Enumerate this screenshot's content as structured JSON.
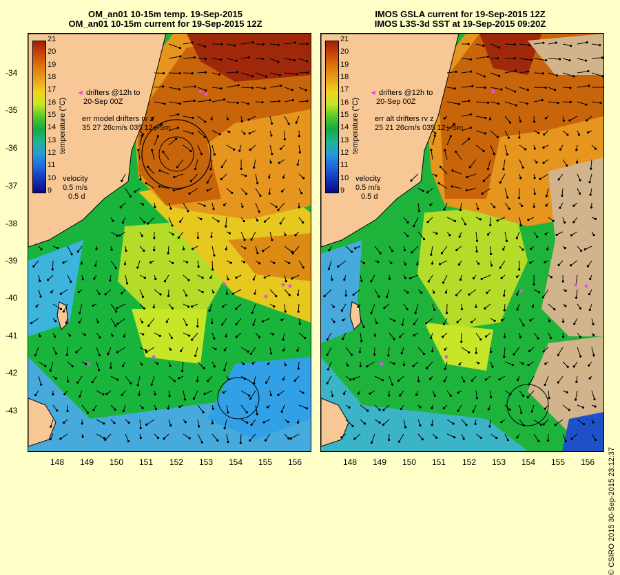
{
  "left": {
    "title_line1": "OM_an01 10-15m temp. 19-Sep-2015",
    "title_line2": "OM_an01 10-15m current for 19-Sep-2015 12Z",
    "drifters_label1": "drifters @12h to",
    "drifters_label2": "20-Sep 00Z",
    "err_line1": "err model drifters rv z",
    "err_line2": "35 27 26cm/s 035 12+-5m"
  },
  "right": {
    "title_line1": "IMOS GSLA current for 19-Sep-2015 12Z",
    "title_line2": "IMOS L3S-3d SST at 19-Sep-2015 09:20Z",
    "drifters_label1": "drifters @12h to",
    "drifters_label2": "20-Sep 00Z",
    "err_line1": "err alt drifters rv z",
    "err_line2": "25 21 26cm/s 035 12+-5m"
  },
  "colorbar": {
    "title": "temperature (°C)",
    "ticks": [
      "21",
      "20",
      "19",
      "18",
      "17",
      "16",
      "15",
      "14",
      "13",
      "12",
      "11",
      "10",
      "9"
    ],
    "colors": [
      "#a01e0a",
      "#c8460a",
      "#dc780a",
      "#e6a01e",
      "#f0d21e",
      "#c8e628",
      "#50c828",
      "#14aa46",
      "#1eb496",
      "#2896dc",
      "#1e64dc",
      "#1432b4",
      "#0a0a82"
    ]
  },
  "velocity_legend": {
    "label": "velocity",
    "speed": "0.5 m/s",
    "time": "0.5 d"
  },
  "y_axis_ticks": [
    "-34",
    "-35",
    "-36",
    "-37",
    "-38",
    "-39",
    "-40",
    "-41",
    "-42",
    "-43"
  ],
  "x_axis_ticks": [
    "148",
    "149",
    "150",
    "151",
    "152",
    "153",
    "154",
    "155",
    "156"
  ],
  "copyright": "© CSIRO 2015   30-Sep-2015 23:12:37",
  "colors": {
    "background": "#ffffc8",
    "land": "#f7c896",
    "warm": "#c8640a",
    "yellow": "#dcdc32",
    "green": "#28c828",
    "cool": "#3cb4dc",
    "cloud": "#d2b48c",
    "drifter": "#e650e6"
  }
}
